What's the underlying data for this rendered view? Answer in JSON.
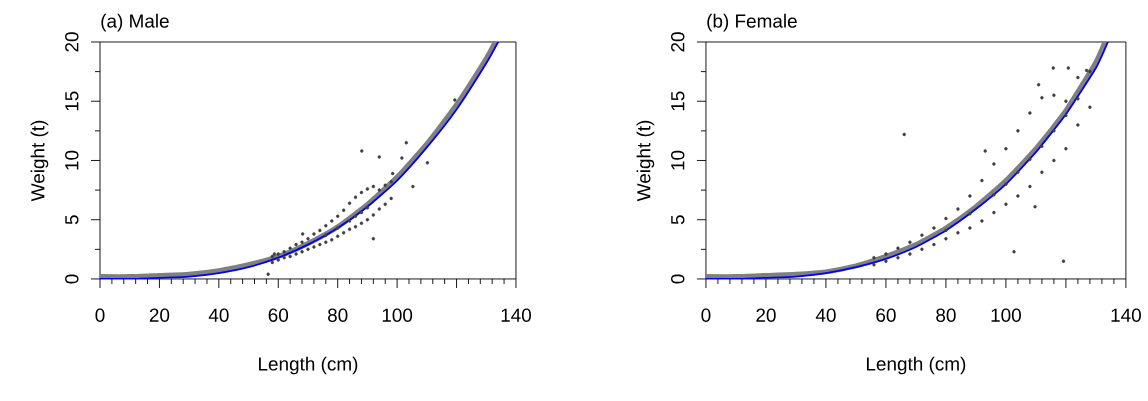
{
  "chart_data": [
    {
      "type": "scatter",
      "title": "(a) Male",
      "xlabel": "Length (cm)",
      "ylabel": "Weight (t)",
      "xlim": [
        0,
        140
      ],
      "ylim": [
        0,
        20
      ],
      "xticks": [
        0,
        20,
        40,
        60,
        80,
        100,
        {
          "value": 120,
          "label": null
        },
        140
      ],
      "yticks": [
        0,
        5,
        10,
        15,
        20
      ],
      "series": [
        {
          "marker": "circle",
          "color": "#404040",
          "x": [
            58,
            58,
            60,
            60,
            62,
            62,
            64,
            64,
            66,
            66,
            68,
            68,
            70,
            70,
            72,
            72,
            74,
            74,
            76,
            76,
            78,
            78,
            80,
            80,
            82,
            82,
            84,
            84,
            86,
            86,
            88,
            88,
            90,
            90,
            92,
            92,
            94,
            94,
            96,
            96,
            98,
            98,
            76,
            80,
            84,
            86,
            88,
            90,
            88.1,
            94.0,
            103.1,
            101.6,
            105.3,
            110.2,
            92.0,
            56.6,
            119.4,
            98.5,
            68.2,
            58.7
          ],
          "values": [
            1.9,
            1.4,
            2.1,
            1.6,
            2.3,
            1.8,
            2.6,
            1.9,
            2.9,
            2.1,
            3.1,
            2.3,
            3.4,
            2.5,
            3.8,
            2.7,
            4.1,
            2.9,
            4.5,
            3.1,
            4.9,
            3.3,
            5.3,
            3.6,
            5.8,
            3.9,
            6.4,
            4.2,
            6.9,
            4.4,
            7.3,
            4.7,
            7.6,
            5.0,
            7.8,
            5.4,
            7.5,
            5.9,
            7.9,
            6.3,
            8.2,
            6.8,
            3.7,
            4.3,
            4.9,
            5.3,
            5.6,
            6.0,
            10.8,
            10.3,
            11.5,
            10.2,
            7.8,
            9.8,
            3.4,
            0.4,
            15.1,
            8.9,
            3.8,
            2.1
          ]
        },
        {
          "type": "line",
          "color": "#808080",
          "x": [
            0,
            10,
            20,
            30,
            40,
            50,
            60,
            70,
            80,
            90,
            100,
            110,
            120,
            130,
            133
          ],
          "values": [
            0.2,
            0.2,
            0.3,
            0.4,
            0.7,
            1.2,
            1.9,
            3.0,
            4.4,
            6.3,
            8.6,
            11.4,
            14.7,
            18.6,
            20.0
          ]
        },
        {
          "type": "line",
          "color": "#0000ff",
          "x": [
            0,
            10,
            20,
            30,
            40,
            50,
            60,
            70,
            80,
            90,
            100,
            110,
            120,
            130,
            134
          ],
          "values": [
            0.0,
            0.0,
            0.1,
            0.2,
            0.5,
            1.0,
            1.8,
            2.9,
            4.3,
            6.1,
            8.3,
            11.1,
            14.3,
            18.2,
            20.0
          ]
        }
      ]
    },
    {
      "type": "scatter",
      "title": "(b) Female",
      "xlabel": "Length (cm)",
      "ylabel": "Weight (t)",
      "xlim": [
        0,
        140
      ],
      "ylim": [
        0,
        20
      ],
      "xticks": [
        0,
        20,
        40,
        60,
        80,
        100,
        {
          "value": 120,
          "label": null
        },
        140
      ],
      "yticks": [
        0,
        5,
        10,
        15,
        20
      ],
      "series": [
        {
          "marker": "circle",
          "color": "#404040",
          "x": [
            56,
            56,
            60,
            60,
            64,
            64,
            68,
            68,
            72,
            72,
            76,
            76,
            80,
            80,
            84,
            84,
            88,
            88,
            92,
            92,
            96,
            96,
            100,
            100,
            104,
            104,
            108,
            108,
            112,
            112,
            116,
            116,
            120,
            120,
            124,
            124,
            128,
            128,
            80,
            88,
            96,
            100,
            104,
            108,
            112,
            116,
            120,
            124,
            66.1,
            102.7,
            119.2,
            109.7,
            115.8,
            120.8,
            126.9,
            110.9,
            93.1
          ],
          "values": [
            1.8,
            1.2,
            2.1,
            1.5,
            2.6,
            1.8,
            3.1,
            2.1,
            3.7,
            2.5,
            4.3,
            2.9,
            5.1,
            3.4,
            5.9,
            3.9,
            7.0,
            4.3,
            8.3,
            4.9,
            9.7,
            5.6,
            11.0,
            6.3,
            12.5,
            7.0,
            14.0,
            7.8,
            15.3,
            9.0,
            15.5,
            10.0,
            15.0,
            11.0,
            17.0,
            13.0,
            17.5,
            14.5,
            4.1,
            5.5,
            7.1,
            8.0,
            9.0,
            10.1,
            11.2,
            12.5,
            13.8,
            15.2,
            12.2,
            2.3,
            1.5,
            6.1,
            17.8,
            17.8,
            17.6,
            16.4,
            10.8
          ]
        },
        {
          "type": "line",
          "color": "#808080",
          "x": [
            0,
            10,
            20,
            30,
            40,
            50,
            60,
            70,
            80,
            90,
            100,
            110,
            120,
            130,
            133
          ],
          "values": [
            0.2,
            0.2,
            0.3,
            0.4,
            0.6,
            1.1,
            1.9,
            2.9,
            4.3,
            6.1,
            8.3,
            11.0,
            14.2,
            18.3,
            20.0
          ]
        },
        {
          "type": "line",
          "color": "#0000ff",
          "x": [
            0,
            10,
            20,
            30,
            40,
            50,
            60,
            70,
            80,
            90,
            100,
            110,
            120,
            130,
            134
          ],
          "values": [
            0.0,
            0.0,
            0.1,
            0.2,
            0.5,
            1.0,
            1.7,
            2.7,
            4.1,
            5.9,
            8.0,
            10.7,
            13.9,
            17.8,
            20.0
          ]
        }
      ]
    }
  ]
}
